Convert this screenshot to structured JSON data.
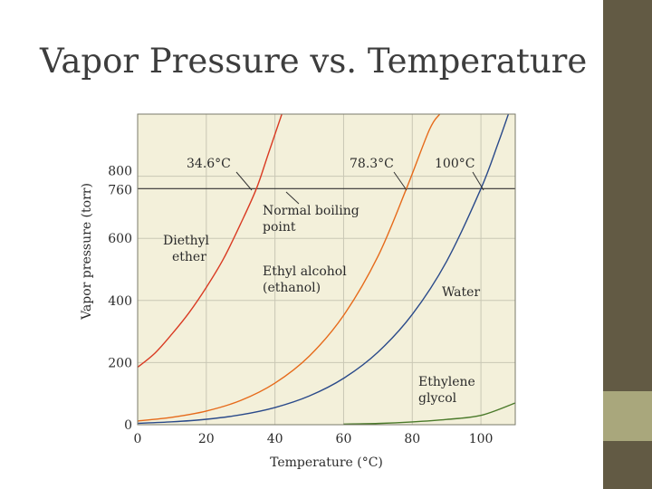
{
  "slide": {
    "title": "Vapor Pressure vs. Temperature",
    "colors": {
      "sidebar_top": "#625a44",
      "sidebar_mid": "#a9a77c",
      "sidebar_bot": "#625a44",
      "plot_bg": "#f3f0da",
      "grid": "#c9c7b4"
    }
  },
  "chart_data": {
    "type": "line",
    "xlabel": "Temperature (°C)",
    "ylabel": "Vapor pressure (torr)",
    "xlim": [
      0,
      110
    ],
    "ylim": [
      0,
      1000
    ],
    "xticks": [
      0,
      20,
      40,
      60,
      80,
      100
    ],
    "yticks": [
      0,
      200,
      400,
      600,
      760,
      800
    ],
    "grid": true,
    "reference_line": {
      "y": 760,
      "label": "Normal boiling point"
    },
    "series": [
      {
        "name": "Diethyl ether",
        "label_lines": [
          "Diethyl",
          "ether"
        ],
        "color": "#d93a22",
        "boiling_point_label": "34.6°C",
        "boiling_point": 34.6,
        "x": [
          0,
          5,
          10,
          15,
          20,
          25,
          30,
          34.6,
          38,
          42
        ],
        "y": [
          185,
          230,
          292,
          361,
          442,
          534,
          647,
          760,
          870,
          1000
        ]
      },
      {
        "name": "Ethyl alcohol (ethanol)",
        "label_lines": [
          "Ethyl alcohol",
          "(ethanol)"
        ],
        "color": "#e66a1a",
        "boiling_point_label": "78.3°C",
        "boiling_point": 78.3,
        "x": [
          0,
          10,
          20,
          30,
          40,
          50,
          60,
          70,
          78.3,
          85,
          88
        ],
        "y": [
          12,
          24,
          44,
          78,
          134,
          221,
          352,
          542,
          760,
          950,
          1000
        ]
      },
      {
        "name": "Water",
        "label_lines": [
          "Water"
        ],
        "color": "#2a4a8a",
        "boiling_point_label": "100°C",
        "boiling_point": 100,
        "x": [
          0,
          10,
          20,
          30,
          40,
          50,
          60,
          70,
          80,
          90,
          100,
          105,
          108
        ],
        "y": [
          4.6,
          9.2,
          17.5,
          31.8,
          55.3,
          92.5,
          149.4,
          233.7,
          355.1,
          525.8,
          760,
          906,
          1000
        ]
      },
      {
        "name": "Ethylene glycol",
        "label_lines": [
          "Ethylene",
          "glycol"
        ],
        "color": "#4a7a2a",
        "boiling_point_label": "",
        "x": [
          60,
          70,
          80,
          90,
          100,
          110
        ],
        "y": [
          2,
          4,
          9,
          17,
          30,
          70
        ]
      }
    ]
  }
}
